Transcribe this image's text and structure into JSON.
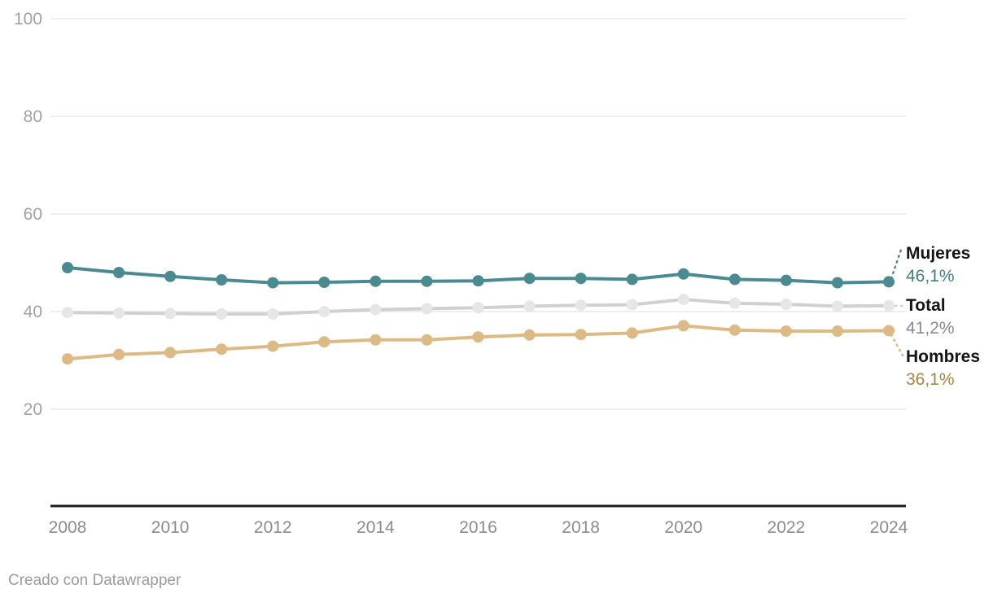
{
  "chart_data": {
    "type": "line",
    "title": "",
    "x": [
      2008,
      2009,
      2010,
      2011,
      2012,
      2013,
      2014,
      2015,
      2016,
      2017,
      2018,
      2019,
      2020,
      2021,
      2022,
      2023,
      2024
    ],
    "series": [
      {
        "name": "Mujeres",
        "values": [
          49.0,
          48.0,
          47.2,
          46.5,
          45.9,
          46.0,
          46.2,
          46.2,
          46.3,
          46.8,
          46.8,
          46.6,
          47.7,
          46.6,
          46.4,
          45.9,
          46.1
        ],
        "color": "#4a8b91",
        "dot_color": "#4a8b91",
        "label_color": "#3d7f86",
        "end_label": "46,1%"
      },
      {
        "name": "Total",
        "values": [
          39.8,
          39.7,
          39.6,
          39.5,
          39.5,
          40.0,
          40.4,
          40.6,
          40.8,
          41.1,
          41.3,
          41.4,
          42.5,
          41.7,
          41.5,
          41.1,
          41.2
        ],
        "color": "#d0d0d0",
        "dot_color": "#e6e6e6",
        "label_color": "#8a8a8a",
        "end_label": "41,2%"
      },
      {
        "name": "Hombres",
        "values": [
          30.3,
          31.2,
          31.6,
          32.3,
          32.9,
          33.8,
          34.2,
          34.2,
          34.8,
          35.2,
          35.3,
          35.6,
          37.1,
          36.2,
          36.0,
          36.0,
          36.1
        ],
        "color": "#ddb983",
        "dot_color": "#ddb983",
        "label_color": "#a98446",
        "end_label": "36,1%"
      }
    ],
    "ylim": [
      0,
      100
    ],
    "yticks": [
      20,
      40,
      60,
      80,
      100
    ],
    "xticks": [
      2008,
      2010,
      2012,
      2014,
      2016,
      2018,
      2020,
      2022,
      2024
    ],
    "grid": "horizontal",
    "legend_position": "right-end-of-lines"
  },
  "footer": {
    "credit": "Creado con Datawrapper"
  },
  "colors": {
    "background": "#ffffff",
    "gridline": "#e8e8e8",
    "axis_line": "#1c1c1c",
    "tick_label_y": "#a2a2a2",
    "tick_label_x": "#8c8c8c",
    "legend_name": "#151515",
    "footer_text": "#9b9b9b"
  }
}
